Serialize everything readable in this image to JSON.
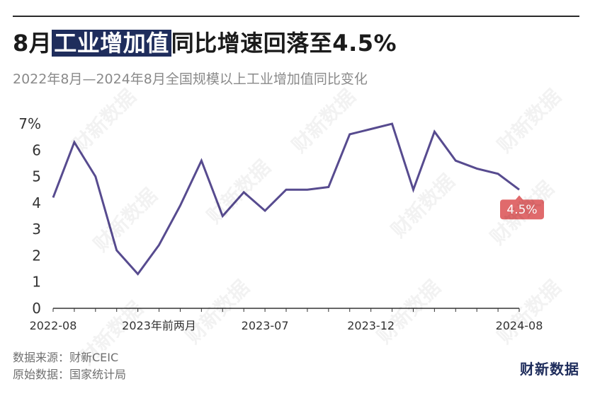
{
  "header": {
    "title_pre": "8月",
    "title_highlight": "工业增加值",
    "title_post": "同比增速回落至4.5%",
    "subtitle": "2022年8月—2024年8月全国规模以上工业增加值同比变化"
  },
  "footer": {
    "source": "数据来源：财新CEIC",
    "original": "原始数据：国家统计局",
    "brand": "财新数据"
  },
  "watermark": "财新数据",
  "colors": {
    "line": "#574b8f",
    "end_label": "#e06a6c",
    "title_highlight": "#1f2d5c",
    "axis": "#333333"
  },
  "chart_data": {
    "type": "line",
    "title": "8月工业增加值同比增速回落至4.5%",
    "subtitle": "2022年8月—2024年8月全国规模以上工业增加值同比变化",
    "x_labels_shown": [
      "2022-08",
      "2023年前两月",
      "2023-07",
      "2023-12",
      "2024-08"
    ],
    "x": [
      "2022-08",
      "2022-09",
      "2022-10",
      "2022-11",
      "2022-12",
      "2023年前两月",
      "2023-03",
      "2023-04",
      "2023-05",
      "2023-06",
      "2023-07",
      "2023-08",
      "2023-09",
      "2023-10",
      "2023-11",
      "2023-12",
      "2024年前两月",
      "2024-03",
      "2024-04",
      "2024-05",
      "2024-06",
      "2024-07",
      "2024-08"
    ],
    "values": [
      4.2,
      6.3,
      5.0,
      2.2,
      1.3,
      2.4,
      3.9,
      5.6,
      3.5,
      4.4,
      3.7,
      4.5,
      4.5,
      4.6,
      6.6,
      6.8,
      7.0,
      4.5,
      6.7,
      5.6,
      5.3,
      5.1,
      4.5
    ],
    "y_ticks": [
      "0",
      "1",
      "2",
      "3",
      "4",
      "5",
      "6",
      "7%"
    ],
    "ylim": [
      0,
      7
    ],
    "end_label": "4.5%",
    "grid": false
  }
}
